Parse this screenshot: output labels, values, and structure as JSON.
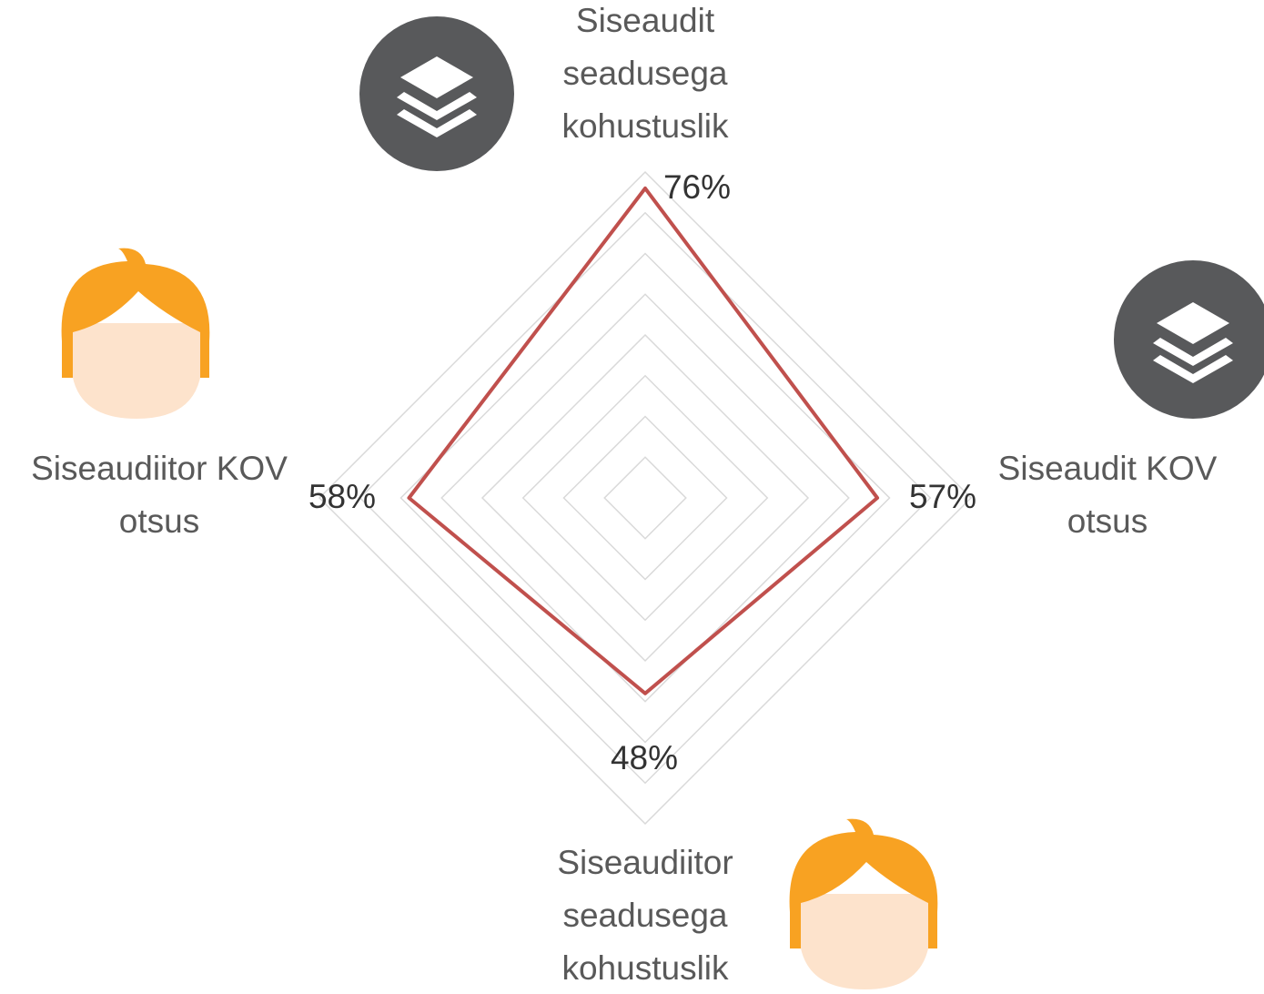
{
  "chart_data": {
    "type": "radar",
    "categories": [
      [
        "Siseaudit",
        "seadusega",
        "kohustuslik"
      ],
      [
        "Siseaudit KOV",
        "otsus"
      ],
      [
        "Siseaudiitor",
        "seadusega",
        "kohustuslik"
      ],
      [
        "Siseaudiitor KOV",
        "otsus"
      ]
    ],
    "series": [
      {
        "color": "#c0504d",
        "values": [
          76,
          57,
          48,
          58
        ],
        "value_labels": [
          "76%",
          "57%",
          "48%",
          "58%"
        ]
      }
    ],
    "rlim": [
      0,
      80
    ],
    "rticks": [
      0,
      10,
      20,
      30,
      40,
      50,
      60,
      70,
      80
    ],
    "grid": true
  }
}
